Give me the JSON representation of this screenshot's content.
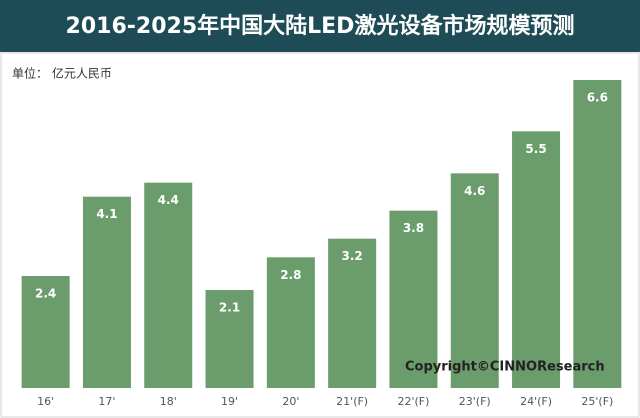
{
  "chart_data": {
    "type": "bar",
    "title": "2016-2025年中国大陆LED激光设备市场规模预测",
    "unit_label": "单位： 亿元人民币",
    "watermark": "Copyright©CINNOResearch",
    "categories": [
      "16'",
      "17'",
      "18'",
      "19'",
      "20'",
      "21'(F)",
      "22'(F)",
      "23'(F)",
      "24'(F)",
      "25'(F)"
    ],
    "values": [
      2.4,
      4.1,
      4.4,
      2.1,
      2.8,
      3.2,
      3.8,
      4.6,
      5.5,
      6.6
    ],
    "color": "#6b9c6b"
  }
}
